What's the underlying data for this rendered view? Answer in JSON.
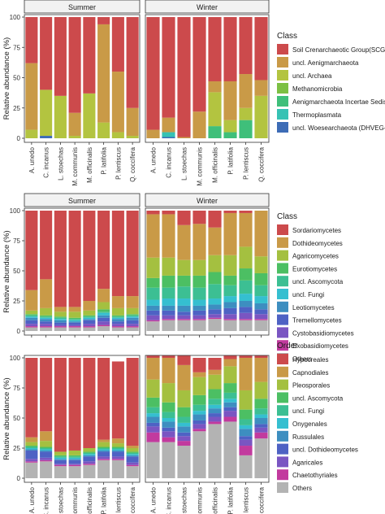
{
  "chart_data": [
    {
      "type": "bar",
      "stacked": true,
      "facets": [
        "Summer",
        "Winter"
      ],
      "categories": [
        "A. unedo",
        "C. incanus",
        "L. stoechas",
        "M. communis",
        "M. officinalis",
        "P. latifolia",
        "P. lentiscus",
        "Q. coccifera"
      ],
      "ylabel": "Relative abundance (%)",
      "ylim": [
        0,
        100
      ],
      "yticks": [
        0,
        25,
        50,
        75,
        100
      ],
      "legend_title": "Class",
      "legend_position": "right",
      "series": [
        {
          "name": "uncl. Woesearchaeota (DHVEG-6)",
          "color": "#3d6cb6",
          "values": {
            "Summer": [
              0,
              2,
              0,
              0,
              0,
              0,
              0,
              0
            ],
            "Winter": [
              0,
              1,
              0,
              0,
              0,
              0,
              0,
              0
            ]
          }
        },
        {
          "name": "Thermoplasmata",
          "color": "#36c2b4",
          "values": {
            "Summer": [
              0,
              0,
              0,
              0,
              0,
              0,
              0,
              0
            ],
            "Winter": [
              0,
              4,
              0,
              0,
              0,
              0,
              0,
              0
            ]
          }
        },
        {
          "name": "Aenigmarchaeota Incertae Sedis",
          "color": "#3fbf7a",
          "values": {
            "Summer": [
              0,
              0,
              0,
              0,
              0,
              0,
              0,
              0
            ],
            "Winter": [
              0,
              0,
              0,
              0,
              10,
              5,
              15,
              0
            ]
          }
        },
        {
          "name": "Methanomicrobia",
          "color": "#7cc043",
          "values": {
            "Summer": [
              0,
              0,
              0,
              0,
              0,
              0,
              0,
              0
            ],
            "Winter": [
              0,
              0,
              0,
              0,
              0,
              0,
              0,
              0
            ]
          }
        },
        {
          "name": "uncl. Archaea",
          "color": "#b3c440",
          "values": {
            "Summer": [
              7,
              38,
              35,
              2,
              37,
              13,
              5,
              2
            ],
            "Winter": [
              0,
              0,
              0,
              0,
              28,
              10,
              10,
              35
            ]
          }
        },
        {
          "name": "uncl. Aenigmarchaeota",
          "color": "#c99a47",
          "values": {
            "Summer": [
              55,
              0,
              0,
              19,
              0,
              81,
              50,
              23
            ],
            "Winter": [
              7,
              12,
              1,
              22,
              9,
              32,
              28,
              13
            ]
          }
        },
        {
          "name": "Soil Crenarchaeotic Group(SCG)",
          "color": "#cc4a4c",
          "values": {
            "Summer": [
              38,
              60,
              65,
              79,
              63,
              6,
              45,
              75
            ],
            "Winter": [
              93,
              83,
              99,
              78,
              53,
              53,
              47,
              52
            ]
          }
        }
      ]
    },
    {
      "type": "bar",
      "stacked": true,
      "facets": [
        "Summer",
        "Winter"
      ],
      "categories": [
        "A. unedo",
        "C. incanus",
        "L. stoechas",
        "M. communis",
        "M. officinalis",
        "P. latifolia",
        "P. lentiscus",
        "Q. coccifera"
      ],
      "ylabel": "Relative abundance (%)",
      "ylim": [
        0,
        100
      ],
      "yticks": [
        0,
        25,
        50,
        75,
        100
      ],
      "legend_title": "Class",
      "legend_position": "right",
      "series": [
        {
          "name": "Others",
          "color": "#b3b3b3",
          "values": {
            "Summer": [
              3,
              3,
              3,
              3,
              3,
              4,
              3,
              3
            ],
            "Winter": [
              8,
              9,
              9,
              9,
              10,
              9,
              9,
              9
            ]
          }
        },
        {
          "name": "Exobasidiomycetes",
          "color": "#c23a9e",
          "values": {
            "Summer": [
              1,
              1,
              1,
              1,
              1,
              1,
              1,
              1
            ],
            "Winter": [
              1,
              1,
              1,
              1,
              1,
              1,
              1,
              1
            ]
          }
        },
        {
          "name": "Cystobasidiomycetes",
          "color": "#7a55c2",
          "values": {
            "Summer": [
              2,
              2,
              1,
              1,
              2,
              3,
              2,
              2
            ],
            "Winter": [
              4,
              3,
              3,
              3,
              3,
              4,
              5,
              4
            ]
          }
        },
        {
          "name": "Tremellomycetes",
          "color": "#4e62c4",
          "values": {
            "Summer": [
              3,
              2,
              2,
              2,
              3,
              3,
              2,
              3
            ],
            "Winter": [
              4,
              4,
              3,
              4,
              4,
              5,
              5,
              4
            ]
          }
        },
        {
          "name": "Leotiomycetes",
          "color": "#3d8ec0",
          "values": {
            "Summer": [
              2,
              2,
              2,
              1,
              1,
              2,
              2,
              2
            ],
            "Winter": [
              4,
              4,
              5,
              4,
              4,
              5,
              5,
              5
            ]
          }
        },
        {
          "name": "uncl. Fungi",
          "color": "#35bfd0",
          "values": {
            "Summer": [
              1,
              1,
              1,
              1,
              1,
              2,
              1,
              1
            ],
            "Winter": [
              5,
              6,
              6,
              5,
              5,
              5,
              6,
              6
            ]
          }
        },
        {
          "name": "uncl. Ascomycota",
          "color": "#3cbf93",
          "values": {
            "Summer": [
              1,
              1,
              1,
              1,
              1,
              1,
              1,
              1
            ],
            "Winter": [
              10,
              9,
              10,
              10,
              12,
              9,
              11,
              9
            ]
          }
        },
        {
          "name": "Eurotiomycetes",
          "color": "#4cbf63",
          "values": {
            "Summer": [
              1,
              1,
              1,
              1,
              1,
              2,
              1,
              1
            ],
            "Winter": [
              8,
              10,
              9,
              10,
              10,
              8,
              10,
              10
            ]
          }
        },
        {
          "name": "Agaricomycetes",
          "color": "#a4c040",
          "values": {
            "Summer": [
              3,
              6,
              4,
              5,
              4,
              6,
              6,
              5
            ],
            "Winter": [
              17,
              15,
              13,
              13,
              14,
              17,
              18,
              14
            ]
          }
        },
        {
          "name": "Dothideomycetes",
          "color": "#c99a47",
          "values": {
            "Summer": [
              17,
              24,
              4,
              4,
              8,
              11,
              10,
              10
            ],
            "Winter": [
              36,
              36,
              29,
              30,
              23,
              35,
              28,
              38
            ]
          }
        },
        {
          "name": "Sordariomycetes",
          "color": "#cc4a4c",
          "values": {
            "Summer": [
              66,
              57,
              80,
              80,
              75,
              65,
              71,
              71
            ],
            "Winter": [
              3,
              3,
              12,
              11,
              14,
              2,
              2,
              0
            ]
          }
        }
      ]
    },
    {
      "type": "bar",
      "stacked": true,
      "facets": [
        "Summer",
        "Winter"
      ],
      "categories": [
        "A. unedo",
        "C. incanus",
        "L. stoechas",
        "M. communis",
        "M. officinalis",
        "P. latifolia",
        "P. lentiscus",
        "Q. coccifera"
      ],
      "ylabel": "Relative abundance (%)",
      "ylim": [
        0,
        100
      ],
      "yticks": [
        0,
        25,
        50,
        75,
        100
      ],
      "legend_title": "Order",
      "legend_position": "right",
      "series": [
        {
          "name": "Others",
          "color": "#b3b3b3",
          "values": {
            "Summer": [
              13,
              14,
              10,
              10,
              11,
              15,
              15,
              10
            ],
            "Winter": [
              30,
              30,
              27,
              39,
              45,
              47,
              19,
              33
            ]
          }
        },
        {
          "name": "Chaetothyriales",
          "color": "#c23a9e",
          "values": {
            "Summer": [
              1,
              1,
              1,
              1,
              1,
              1,
              1,
              1
            ],
            "Winter": [
              8,
              4,
              4,
              2,
              2,
              4,
              8,
              5
            ]
          }
        },
        {
          "name": "Agaricales",
          "color": "#7a55c2",
          "values": {
            "Summer": [
              2,
              2,
              1,
              1,
              2,
              2,
              2,
              2
            ],
            "Winter": [
              5,
              5,
              4,
              4,
              4,
              5,
              5,
              4
            ]
          }
        },
        {
          "name": "uncl. Dothideomycetes",
          "color": "#4e62c4",
          "values": {
            "Summer": [
              7,
              5,
              3,
              3,
              4,
              4,
              4,
              5
            ],
            "Winter": [
              3,
              3,
              3,
              3,
              3,
              3,
              3,
              3
            ]
          }
        },
        {
          "name": "Russulales",
          "color": "#3d8ec0",
          "values": {
            "Summer": [
              1,
              1,
              1,
              1,
              1,
              1,
              1,
              1
            ],
            "Winter": [
              5,
              5,
              5,
              5,
              4,
              4,
              6,
              5
            ]
          }
        },
        {
          "name": "Onygenales",
          "color": "#35bfd0",
          "values": {
            "Summer": [
              1,
              1,
              1,
              1,
              1,
              1,
              1,
              1
            ],
            "Winter": [
              3,
              3,
              3,
              3,
              3,
              3,
              3,
              3
            ]
          }
        },
        {
          "name": "uncl. Fungi",
          "color": "#3cbf93",
          "values": {
            "Summer": [
              1,
              1,
              1,
              1,
              1,
              1,
              1,
              1
            ],
            "Winter": [
              5,
              5,
              5,
              5,
              5,
              5,
              5,
              5
            ]
          }
        },
        {
          "name": "uncl. Ascomycota",
          "color": "#4cbf63",
          "values": {
            "Summer": [
              1,
              1,
              1,
              1,
              1,
              1,
              1,
              1
            ],
            "Winter": [
              8,
              8,
              8,
              8,
              8,
              8,
              8,
              8
            ]
          }
        },
        {
          "name": "Pleosporales",
          "color": "#a4c040",
          "values": {
            "Summer": [
              3,
              5,
              3,
              4,
              3,
              4,
              3,
              3
            ],
            "Winter": [
              15,
              16,
              14,
              15,
              12,
              14,
              16,
              14
            ]
          }
        },
        {
          "name": "Capnodiales",
          "color": "#c99a47",
          "values": {
            "Summer": [
              4,
              8,
              0,
              0,
              0,
              2,
              4,
              2
            ],
            "Winter": [
              18,
              21,
              21,
              4,
              4,
              6,
              27,
              20
            ]
          }
        },
        {
          "name": "Hypocreales",
          "color": "#cc4a4c",
          "values": {
            "Summer": [
              66,
              61,
              78,
              77,
              75,
              68,
              64,
              73
            ],
            "Winter": [
              2,
              2,
              8,
              12,
              10,
              3,
              2,
              2
            ]
          }
        }
      ]
    }
  ]
}
